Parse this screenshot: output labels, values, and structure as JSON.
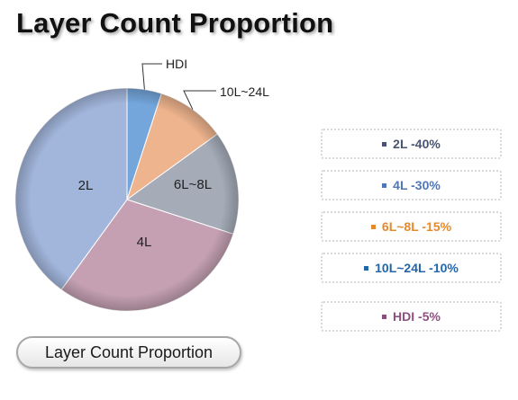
{
  "title": "Layer Count Proportion",
  "footer_button": "Layer Count Proportion",
  "legend": [
    {
      "text": "2L -40%",
      "color": "#4a5470"
    },
    {
      "text": "4L -30%",
      "color": "#4e76b8"
    },
    {
      "text": "6L~8L -15%",
      "color": "#e58a2c"
    },
    {
      "text": "10L~24L -10%",
      "color": "#2266aa"
    },
    {
      "text": "HDI -5%",
      "color": "#8e4f7f"
    }
  ],
  "chart_data": {
    "type": "pie",
    "start": "top, clockwise",
    "slices": [
      {
        "label": "HDI",
        "value": 5,
        "color": "#74a6dc",
        "label_style": "leader"
      },
      {
        "label": "10L~24L",
        "value": 10,
        "color": "#eeb48e",
        "label_style": "leader"
      },
      {
        "label": "6L~8L",
        "value": 15,
        "color": "#a5acb8",
        "label_style": "inside"
      },
      {
        "label": "4L",
        "value": 30,
        "color": "#c4a0b2",
        "label_style": "inside"
      },
      {
        "label": "2L",
        "value": 40,
        "color": "#a2b6dc",
        "label_style": "inside"
      }
    ]
  }
}
